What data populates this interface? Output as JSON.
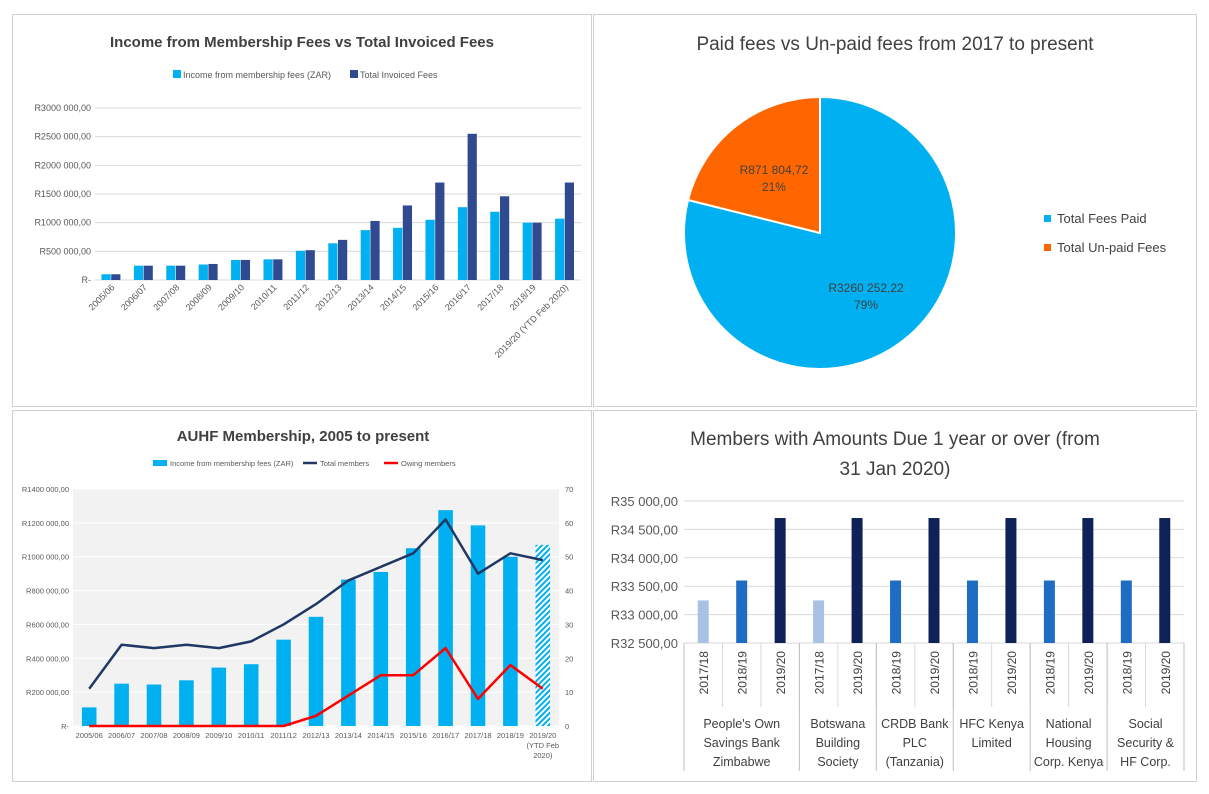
{
  "colors": {
    "income": "#00b0f0",
    "invoiced": "#2f4a91",
    "paid": "#00b0f0",
    "unpaid": "#ff6600",
    "total_members": "#1f3864",
    "owing_members": "#ff0000",
    "c1718": "#aac1e6",
    "c1819": "#1f6dc2",
    "c1920": "#0f2257",
    "axis_text": "#595959"
  },
  "chart_data": [
    {
      "type": "bar",
      "title": "Income from Membership Fees vs Total Invoiced Fees",
      "categories": [
        "2005/06",
        "2006/07",
        "2007/08",
        "2008/09",
        "2009/10",
        "2010/11",
        "2011/12",
        "2012/13",
        "2013/14",
        "2014/15",
        "2015/16",
        "2016/17",
        "2017/18",
        "2018/19",
        "2019/20 (YTD Feb 2020)"
      ],
      "series": [
        {
          "name": "Income from membership fees (ZAR)",
          "values": [
            100000,
            250000,
            250000,
            270000,
            350000,
            360000,
            510000,
            640000,
            870000,
            910000,
            1050000,
            1270000,
            1190000,
            1000000,
            1070000
          ]
        },
        {
          "name": "Total Invoiced Fees",
          "values": [
            100000,
            250000,
            250000,
            280000,
            350000,
            360000,
            520000,
            700000,
            1030000,
            1300000,
            1700000,
            2550000,
            1460000,
            1000000,
            1700000
          ]
        }
      ],
      "yticks": [
        "R-",
        "R500 000,00",
        "R1000 000,00",
        "R1500 000,00",
        "R2000 000,00",
        "R2500 000,00",
        "R3000 000,00"
      ],
      "ylim": [
        0,
        3000000
      ],
      "legend": "top"
    },
    {
      "type": "pie",
      "title": "Paid fees vs Un-paid fees from 2017 to present",
      "slices": [
        {
          "name": "Total Fees Paid",
          "value": 3260252.22,
          "label": "R3260 252,22",
          "pct": "79%"
        },
        {
          "name": "Total Un-paid Fees",
          "value": 871804.72,
          "label": "R871 804,72",
          "pct": "21%"
        }
      ],
      "legend": "right"
    },
    {
      "type": "bar",
      "title": "AUHF Membership, 2005 to present",
      "categories": [
        "2005/06",
        "2006/07",
        "2007/08",
        "2008/09",
        "2009/10",
        "2010/11",
        "2011/12",
        "2012/13",
        "2013/14",
        "2014/15",
        "2015/16",
        "2016/17",
        "2017/18",
        "2018/19",
        "2019/20"
      ],
      "category_sublabel": [
        "(YTD Feb",
        "2020)"
      ],
      "bar_series": {
        "name": "Income from membership fees (ZAR)",
        "values": [
          110000,
          250000,
          245000,
          270000,
          345000,
          365000,
          510000,
          645000,
          865000,
          910000,
          1050000,
          1275000,
          1185000,
          1000000,
          1070000
        ]
      },
      "line_series": [
        {
          "name": "Total members",
          "values": [
            11,
            24,
            23,
            24,
            23,
            25,
            30,
            36,
            43,
            47,
            51,
            61,
            45,
            51,
            49
          ]
        },
        {
          "name": "Owing members",
          "values": [
            0,
            0,
            0,
            0,
            0,
            0,
            0,
            3,
            9,
            15,
            15,
            23,
            8,
            18,
            11
          ]
        }
      ],
      "yticks_left": [
        "R-",
        "R200 000,00",
        "R400 000,00",
        "R600 000,00",
        "R800 000,00",
        "R1000 000,00",
        "R1200 000,00",
        "R1400 000,00"
      ],
      "ylim_left": [
        0,
        1400000
      ],
      "yticks_right": [
        "0",
        "10",
        "20",
        "30",
        "40",
        "50",
        "60",
        "70"
      ],
      "ylim_right": [
        0,
        70
      ],
      "legend": "top"
    },
    {
      "type": "bar",
      "title_lines": [
        "Members with Amounts Due 1 year or over (from",
        "31 Jan 2020)"
      ],
      "groups": [
        {
          "name_lines": [
            "People's Own",
            "Savings Bank",
            "Zimbabwe"
          ],
          "bars": [
            {
              "label": "2017/18",
              "value": 33250,
              "color_key": "c1718"
            },
            {
              "label": "2018/19",
              "value": 33600,
              "color_key": "c1819"
            },
            {
              "label": "2019/20",
              "value": 34700,
              "color_key": "c1920"
            }
          ]
        },
        {
          "name_lines": [
            "Botswana",
            "Building",
            "Society"
          ],
          "bars": [
            {
              "label": "2017/18",
              "value": 33250,
              "color_key": "c1718"
            },
            {
              "label": "2019/20",
              "value": 34700,
              "color_key": "c1920"
            }
          ]
        },
        {
          "name_lines": [
            "CRDB Bank",
            "PLC",
            "(Tanzania)"
          ],
          "bars": [
            {
              "label": "2018/19",
              "value": 33600,
              "color_key": "c1819"
            },
            {
              "label": "2019/20",
              "value": 34700,
              "color_key": "c1920"
            }
          ]
        },
        {
          "name_lines": [
            "HFC Kenya",
            "Limited"
          ],
          "bars": [
            {
              "label": "2018/19",
              "value": 33600,
              "color_key": "c1819"
            },
            {
              "label": "2019/20",
              "value": 34700,
              "color_key": "c1920"
            }
          ]
        },
        {
          "name_lines": [
            "National",
            "Housing",
            "Corp. Kenya"
          ],
          "bars": [
            {
              "label": "2018/19",
              "value": 33600,
              "color_key": "c1819"
            },
            {
              "label": "2019/20",
              "value": 34700,
              "color_key": "c1920"
            }
          ]
        },
        {
          "name_lines": [
            "Social",
            "Security &",
            "HF Corp."
          ],
          "bars": [
            {
              "label": "2018/19",
              "value": 33600,
              "color_key": "c1819"
            },
            {
              "label": "2019/20",
              "value": 34700,
              "color_key": "c1920"
            }
          ]
        }
      ],
      "yticks": [
        "R32 500,00",
        "R33 000,00",
        "R33 500,00",
        "R34 000,00",
        "R34 500,00",
        "R35 000,00"
      ],
      "ylim": [
        32500,
        35000
      ]
    }
  ]
}
